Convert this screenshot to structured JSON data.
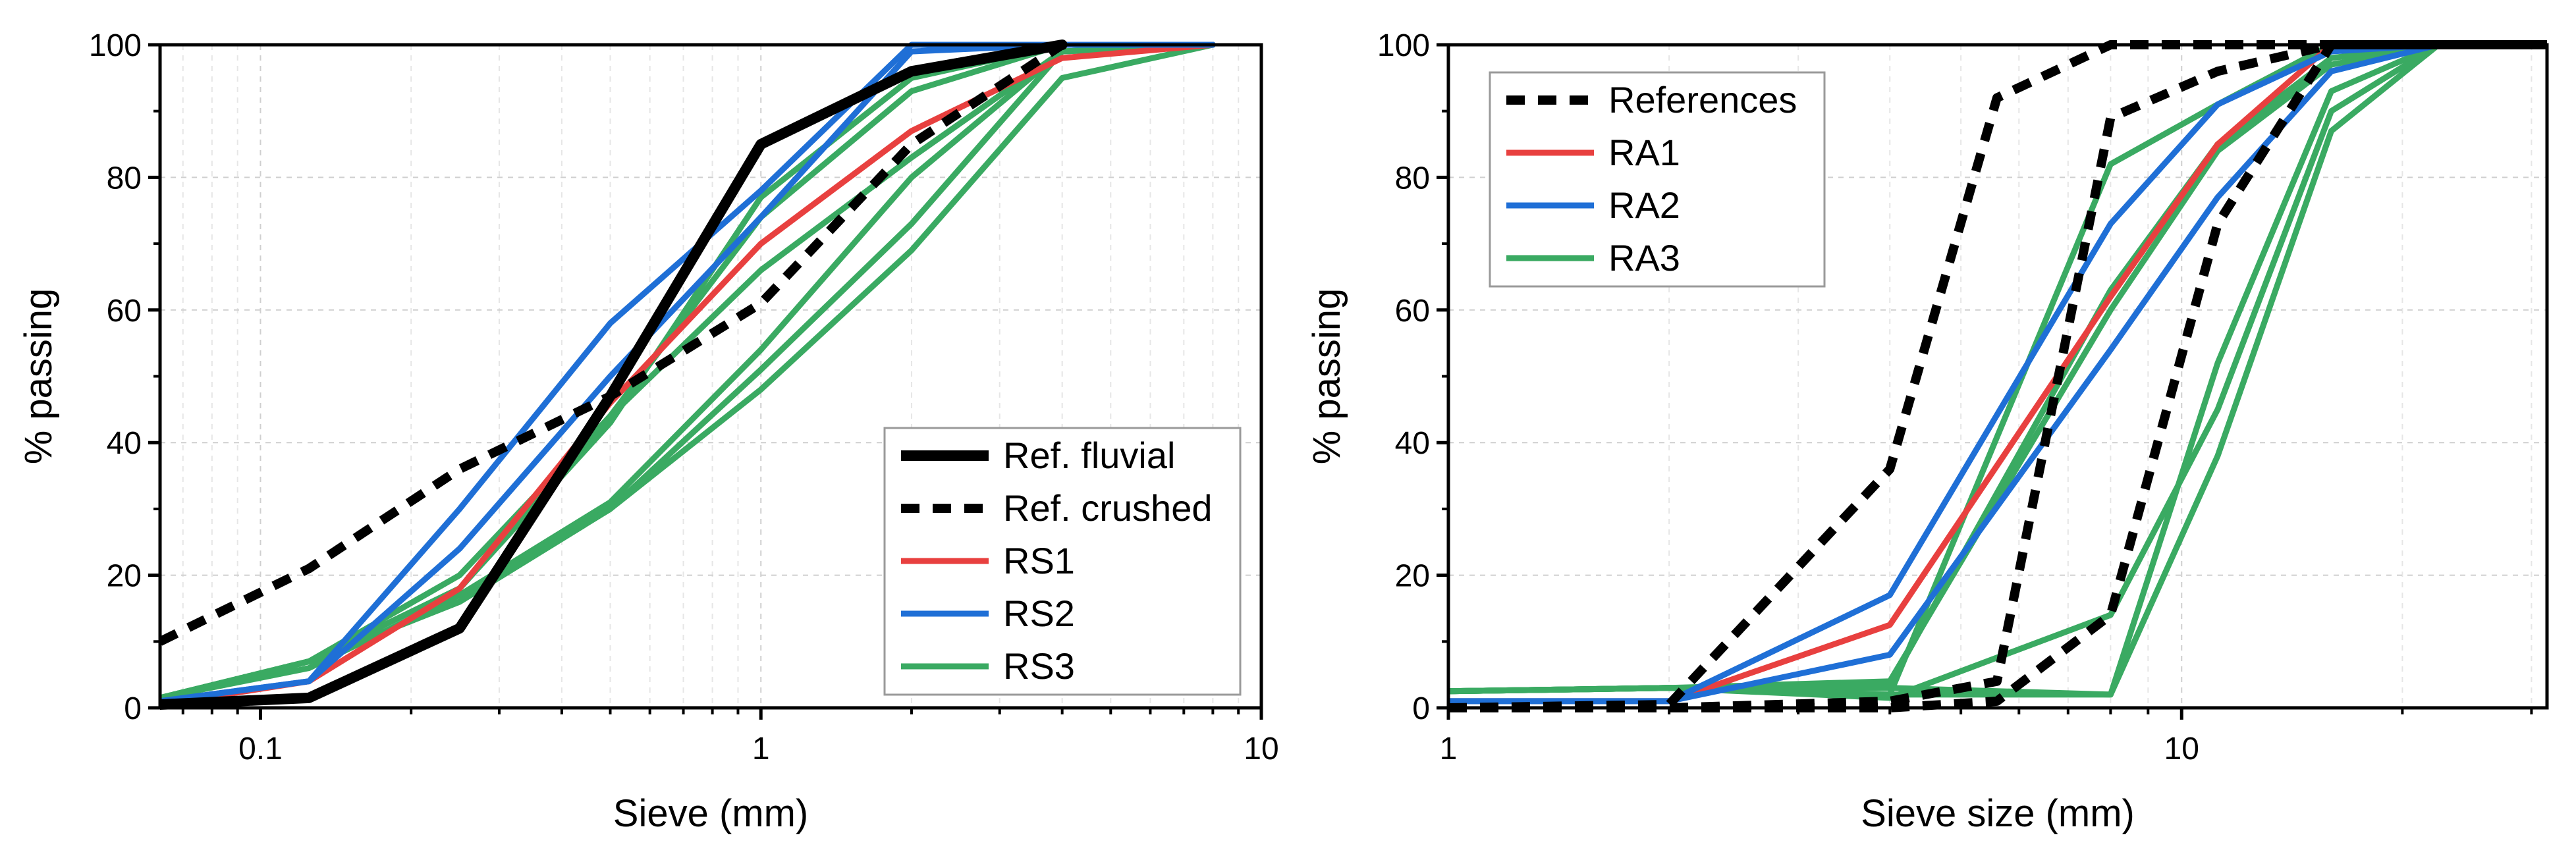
{
  "chart_data": [
    {
      "type": "line",
      "xscale": "log",
      "xlabel": "Sieve (mm)",
      "ylabel": "% passing",
      "xlim": [
        0.063,
        10
      ],
      "ylim": [
        0,
        100
      ],
      "grid": true,
      "legend_position": "bottom-right",
      "x_tick_labels": [
        {
          "value": 0.1,
          "label": "0.1"
        },
        {
          "value": 1,
          "label": "1"
        },
        {
          "value": 10,
          "label": "10"
        }
      ],
      "y_tick_labels": [
        "0",
        "20",
        "40",
        "60",
        "80",
        "100"
      ],
      "legend": [
        {
          "label": "Ref. fluvial",
          "color": "#000000",
          "style": "solid-thick"
        },
        {
          "label": "Ref. crushed",
          "color": "#000000",
          "style": "dashed"
        },
        {
          "label": "RS1",
          "color": "#e8403f",
          "style": "solid"
        },
        {
          "label": "RS2",
          "color": "#1f6fd6",
          "style": "solid"
        },
        {
          "label": "RS3",
          "color": "#3aaa62",
          "style": "solid"
        }
      ],
      "series": [
        {
          "name": "RS3",
          "group": "RS3",
          "color": "#3aaa62",
          "style": "solid",
          "x": [
            0.063,
            0.125,
            0.25,
            0.5,
            1,
            2,
            4,
            8
          ],
          "y": [
            1.5,
            7,
            20,
            44,
            66,
            83,
            99,
            100
          ]
        },
        {
          "name": "RS3",
          "group": "RS3",
          "color": "#3aaa62",
          "style": "solid",
          "x": [
            0.063,
            0.125,
            0.25,
            0.5,
            1,
            2,
            4,
            8
          ],
          "y": [
            1.5,
            7,
            18,
            44,
            74,
            93,
            100,
            100
          ]
        },
        {
          "name": "RS3",
          "group": "RS3",
          "color": "#3aaa62",
          "style": "solid",
          "x": [
            0.063,
            0.125,
            0.25,
            0.5,
            1,
            2,
            4,
            8
          ],
          "y": [
            1.5,
            7,
            18,
            43,
            77,
            95,
            100,
            100
          ]
        },
        {
          "name": "RS3",
          "group": "RS3",
          "color": "#3aaa62",
          "style": "solid",
          "x": [
            0.063,
            0.125,
            0.25,
            0.5,
            1,
            2,
            4,
            8
          ],
          "y": [
            1.5,
            6,
            17,
            31,
            54,
            80,
            99,
            100
          ]
        },
        {
          "name": "RS3",
          "group": "RS3",
          "color": "#3aaa62",
          "style": "solid",
          "x": [
            0.063,
            0.125,
            0.25,
            0.5,
            1,
            2,
            4,
            8
          ],
          "y": [
            1.5,
            7,
            16,
            30,
            51,
            73,
            99,
            100
          ]
        },
        {
          "name": "RS3",
          "group": "RS3",
          "color": "#3aaa62",
          "style": "solid",
          "x": [
            0.063,
            0.125,
            0.25,
            0.5,
            1,
            2,
            4,
            8
          ],
          "y": [
            1.5,
            7,
            16,
            30,
            48,
            69,
            95,
            100
          ]
        },
        {
          "name": "RS1",
          "group": "RS1",
          "color": "#e8403f",
          "style": "solid",
          "x": [
            0.063,
            0.125,
            0.25,
            0.5,
            1,
            2,
            4,
            8
          ],
          "y": [
            0.5,
            4,
            18,
            46,
            70,
            87,
            98,
            100
          ]
        },
        {
          "name": "RS2",
          "group": "RS2",
          "color": "#1f6fd6",
          "style": "solid",
          "x": [
            0.063,
            0.125,
            0.25,
            0.5,
            1,
            2,
            4,
            8
          ],
          "y": [
            1,
            4,
            24,
            50,
            74,
            99,
            100,
            100
          ]
        },
        {
          "name": "RS2",
          "group": "RS2",
          "color": "#1f6fd6",
          "style": "solid",
          "x": [
            0.063,
            0.125,
            0.25,
            0.5,
            1,
            2,
            4,
            8
          ],
          "y": [
            1,
            4,
            30,
            58,
            78,
            100,
            100,
            100
          ]
        },
        {
          "name": "Ref. crushed",
          "group": "Ref. crushed",
          "color": "#000000",
          "style": "dashed",
          "x": [
            0.063,
            0.125,
            0.25,
            0.5,
            1,
            2,
            4
          ],
          "y": [
            10,
            21,
            36,
            47,
            61,
            85,
            100
          ]
        },
        {
          "name": "Ref. fluvial",
          "group": "Ref. fluvial",
          "color": "#000000",
          "style": "solid-thick",
          "x": [
            0.063,
            0.125,
            0.25,
            0.5,
            1,
            2,
            4
          ],
          "y": [
            0.5,
            1.5,
            12,
            47,
            85,
            96,
            100
          ]
        }
      ]
    },
    {
      "type": "line",
      "xscale": "log",
      "xlabel": "Sieve size (mm)",
      "ylabel": "% passing",
      "xlim": [
        1,
        31.5
      ],
      "ylim": [
        0,
        100
      ],
      "grid": true,
      "legend_position": "top-left",
      "x_tick_labels": [
        {
          "value": 1,
          "label": "1"
        },
        {
          "value": 10,
          "label": "10"
        }
      ],
      "y_tick_labels": [
        "0",
        "20",
        "40",
        "60",
        "80",
        "100"
      ],
      "legend": [
        {
          "label": "References",
          "color": "#000000",
          "style": "dashed"
        },
        {
          "label": "RA1",
          "color": "#e8403f",
          "style": "solid"
        },
        {
          "label": "RA2",
          "color": "#1f6fd6",
          "style": "solid"
        },
        {
          "label": "RA3",
          "color": "#3aaa62",
          "style": "solid"
        }
      ],
      "series": [
        {
          "name": "RA3",
          "group": "RA3",
          "color": "#3aaa62",
          "style": "solid",
          "x": [
            1,
            2,
            4,
            8,
            11.2,
            16,
            22.4,
            31.5
          ],
          "y": [
            2.5,
            3,
            3,
            2,
            38,
            87,
            100,
            100
          ]
        },
        {
          "name": "RA3",
          "group": "RA3",
          "color": "#3aaa62",
          "style": "solid",
          "x": [
            1,
            2,
            4,
            8,
            11.2,
            16,
            22.4,
            31.5
          ],
          "y": [
            2.5,
            3,
            1.5,
            14,
            45,
            90,
            100,
            100
          ]
        },
        {
          "name": "RA3",
          "group": "RA3",
          "color": "#3aaa62",
          "style": "solid",
          "x": [
            1,
            2,
            4,
            8,
            11.2,
            16,
            22.4,
            31.5
          ],
          "y": [
            2.5,
            3,
            2,
            2,
            52,
            93,
            100,
            100
          ]
        },
        {
          "name": "RA3",
          "group": "RA3",
          "color": "#3aaa62",
          "style": "solid",
          "x": [
            1,
            2,
            4,
            8,
            11.2,
            16,
            22.4,
            31.5
          ],
          "y": [
            2.5,
            3,
            2,
            82,
            91,
            100,
            100,
            100
          ]
        },
        {
          "name": "RA3",
          "group": "RA3",
          "color": "#3aaa62",
          "style": "solid",
          "x": [
            1,
            2,
            4,
            8,
            11.2,
            16,
            22.4,
            31.5
          ],
          "y": [
            2.5,
            3,
            3.5,
            63,
            85,
            98,
            100,
            100
          ]
        },
        {
          "name": "RA3",
          "group": "RA3",
          "color": "#3aaa62",
          "style": "solid",
          "x": [
            1,
            2,
            4,
            8,
            11.2,
            16,
            22.4,
            31.5
          ],
          "y": [
            2.5,
            3,
            4,
            60,
            84,
            97,
            100,
            100
          ]
        },
        {
          "name": "RA1",
          "group": "RA1",
          "color": "#e8403f",
          "style": "solid",
          "x": [
            1,
            2,
            4,
            8,
            11.2,
            16,
            22.4,
            31.5
          ],
          "y": [
            1,
            1,
            12.5,
            62,
            85,
            100,
            100,
            100
          ]
        },
        {
          "name": "RA2",
          "group": "RA2",
          "color": "#1f6fd6",
          "style": "solid",
          "x": [
            1,
            2,
            4,
            8,
            11.2,
            16,
            22.4,
            31.5
          ],
          "y": [
            1,
            1,
            17,
            73,
            91,
            99,
            100,
            100
          ]
        },
        {
          "name": "RA2",
          "group": "RA2",
          "color": "#1f6fd6",
          "style": "solid",
          "x": [
            1,
            2,
            4,
            8,
            11.2,
            16,
            22.4,
            31.5
          ],
          "y": [
            1,
            1,
            8,
            54,
            77,
            96,
            100,
            100
          ]
        },
        {
          "name": "References",
          "group": "References",
          "color": "#000000",
          "style": "dashed",
          "x": [
            1,
            2,
            4,
            5.6,
            8,
            11.2,
            16,
            22.4,
            31.5
          ],
          "y": [
            0,
            0.5,
            36,
            92,
            100,
            100,
            100,
            100,
            100
          ]
        },
        {
          "name": "References",
          "group": "References",
          "color": "#000000",
          "style": "dashed",
          "x": [
            1,
            2,
            4,
            5.6,
            8,
            11.2,
            16,
            22.4,
            31.5
          ],
          "y": [
            0,
            0,
            1,
            4,
            89,
            96,
            100,
            100,
            100
          ]
        },
        {
          "name": "References",
          "group": "References",
          "color": "#000000",
          "style": "dashed",
          "x": [
            1,
            2,
            4,
            5.6,
            8,
            11.2,
            16,
            22.4,
            31.5
          ],
          "y": [
            0,
            0,
            0,
            1,
            14,
            73,
            100,
            100,
            100
          ]
        }
      ]
    }
  ]
}
